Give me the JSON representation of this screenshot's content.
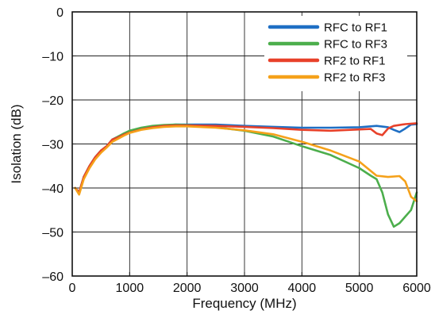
{
  "chart_data": {
    "type": "line",
    "title": "",
    "xlabel": "Frequency (MHz)",
    "ylabel": "Isolation (dB)",
    "xlim": [
      0,
      6000
    ],
    "ylim": [
      -60,
      0
    ],
    "x_ticks": [
      0,
      1000,
      2000,
      3000,
      4000,
      5000,
      6000
    ],
    "x_tick_labels": [
      "0",
      "1000",
      "2000",
      "3000",
      "4000",
      "5000",
      "6000"
    ],
    "y_ticks": [
      0,
      -10,
      -20,
      -30,
      -40,
      -50,
      -60
    ],
    "y_tick_labels": [
      "0",
      "–10",
      "–20",
      "–30",
      "–40",
      "–50",
      "–60"
    ],
    "grid": true,
    "legend_position": "top-right",
    "series": [
      {
        "name": "RFC to RF1",
        "color": "#1f6fc4",
        "points": [
          [
            50,
            -40
          ],
          [
            120,
            -41
          ],
          [
            200,
            -37.5
          ],
          [
            300,
            -35
          ],
          [
            400,
            -33
          ],
          [
            500,
            -31.5
          ],
          [
            600,
            -30.5
          ],
          [
            700,
            -29
          ],
          [
            800,
            -28.3
          ],
          [
            900,
            -27.7
          ],
          [
            1000,
            -27.2
          ],
          [
            1200,
            -26.5
          ],
          [
            1400,
            -26.1
          ],
          [
            1600,
            -25.8
          ],
          [
            1800,
            -25.6
          ],
          [
            2000,
            -25.6
          ],
          [
            2500,
            -25.6
          ],
          [
            3000,
            -25.9
          ],
          [
            3500,
            -26.1
          ],
          [
            4000,
            -26.3
          ],
          [
            4500,
            -26.3
          ],
          [
            5000,
            -26.2
          ],
          [
            5300,
            -25.9
          ],
          [
            5500,
            -26.2
          ],
          [
            5600,
            -26.8
          ],
          [
            5700,
            -27.3
          ],
          [
            5800,
            -26.5
          ],
          [
            5900,
            -25.6
          ],
          [
            6000,
            -25.5
          ]
        ]
      },
      {
        "name": "RFC to RF3",
        "color": "#4cae4c",
        "points": [
          [
            50,
            -40
          ],
          [
            120,
            -41
          ],
          [
            200,
            -37.5
          ],
          [
            300,
            -35
          ],
          [
            400,
            -33
          ],
          [
            500,
            -31.5
          ],
          [
            600,
            -30.5
          ],
          [
            700,
            -29
          ],
          [
            800,
            -28.3
          ],
          [
            900,
            -27.6
          ],
          [
            1000,
            -27
          ],
          [
            1200,
            -26.3
          ],
          [
            1400,
            -25.9
          ],
          [
            1600,
            -25.7
          ],
          [
            1800,
            -25.6
          ],
          [
            2000,
            -25.7
          ],
          [
            2500,
            -26.2
          ],
          [
            3000,
            -27
          ],
          [
            3500,
            -28.3
          ],
          [
            4000,
            -30.5
          ],
          [
            4500,
            -32.5
          ],
          [
            5000,
            -35.5
          ],
          [
            5200,
            -37.2
          ],
          [
            5300,
            -38
          ],
          [
            5400,
            -41
          ],
          [
            5500,
            -46
          ],
          [
            5600,
            -48.8
          ],
          [
            5700,
            -48
          ],
          [
            5800,
            -46.5
          ],
          [
            5900,
            -45
          ],
          [
            6000,
            -41
          ]
        ]
      },
      {
        "name": "RF2 to RF1",
        "color": "#e8412a",
        "points": [
          [
            50,
            -40
          ],
          [
            120,
            -41
          ],
          [
            200,
            -37.5
          ],
          [
            300,
            -35
          ],
          [
            400,
            -33
          ],
          [
            500,
            -31.5
          ],
          [
            600,
            -30.5
          ],
          [
            700,
            -29
          ],
          [
            800,
            -28.5
          ],
          [
            900,
            -27.9
          ],
          [
            1000,
            -27.4
          ],
          [
            1200,
            -26.7
          ],
          [
            1400,
            -26.2
          ],
          [
            1600,
            -25.9
          ],
          [
            1800,
            -25.8
          ],
          [
            2000,
            -25.8
          ],
          [
            2500,
            -25.9
          ],
          [
            3000,
            -26.1
          ],
          [
            3500,
            -26.4
          ],
          [
            4000,
            -26.8
          ],
          [
            4500,
            -27
          ],
          [
            5000,
            -26.7
          ],
          [
            5200,
            -26.6
          ],
          [
            5300,
            -27.6
          ],
          [
            5400,
            -28
          ],
          [
            5500,
            -26.5
          ],
          [
            5600,
            -25.9
          ],
          [
            5800,
            -25.5
          ],
          [
            6000,
            -25.3
          ]
        ]
      },
      {
        "name": "RF2 to RF3",
        "color": "#f5a11a",
        "points": [
          [
            50,
            -40
          ],
          [
            120,
            -41.5
          ],
          [
            200,
            -38
          ],
          [
            300,
            -35.5
          ],
          [
            400,
            -33.5
          ],
          [
            500,
            -32
          ],
          [
            600,
            -30.8
          ],
          [
            700,
            -29.5
          ],
          [
            800,
            -28.8
          ],
          [
            900,
            -28.1
          ],
          [
            1000,
            -27.5
          ],
          [
            1200,
            -26.8
          ],
          [
            1400,
            -26.4
          ],
          [
            1600,
            -26.1
          ],
          [
            1800,
            -26
          ],
          [
            2000,
            -26
          ],
          [
            2500,
            -26.3
          ],
          [
            3000,
            -26.9
          ],
          [
            3500,
            -27.8
          ],
          [
            4000,
            -29.5
          ],
          [
            4500,
            -31.5
          ],
          [
            5000,
            -34
          ],
          [
            5300,
            -37.2
          ],
          [
            5500,
            -37.5
          ],
          [
            5700,
            -37.3
          ],
          [
            5800,
            -38.5
          ],
          [
            5900,
            -42
          ],
          [
            6000,
            -43
          ]
        ]
      }
    ]
  }
}
